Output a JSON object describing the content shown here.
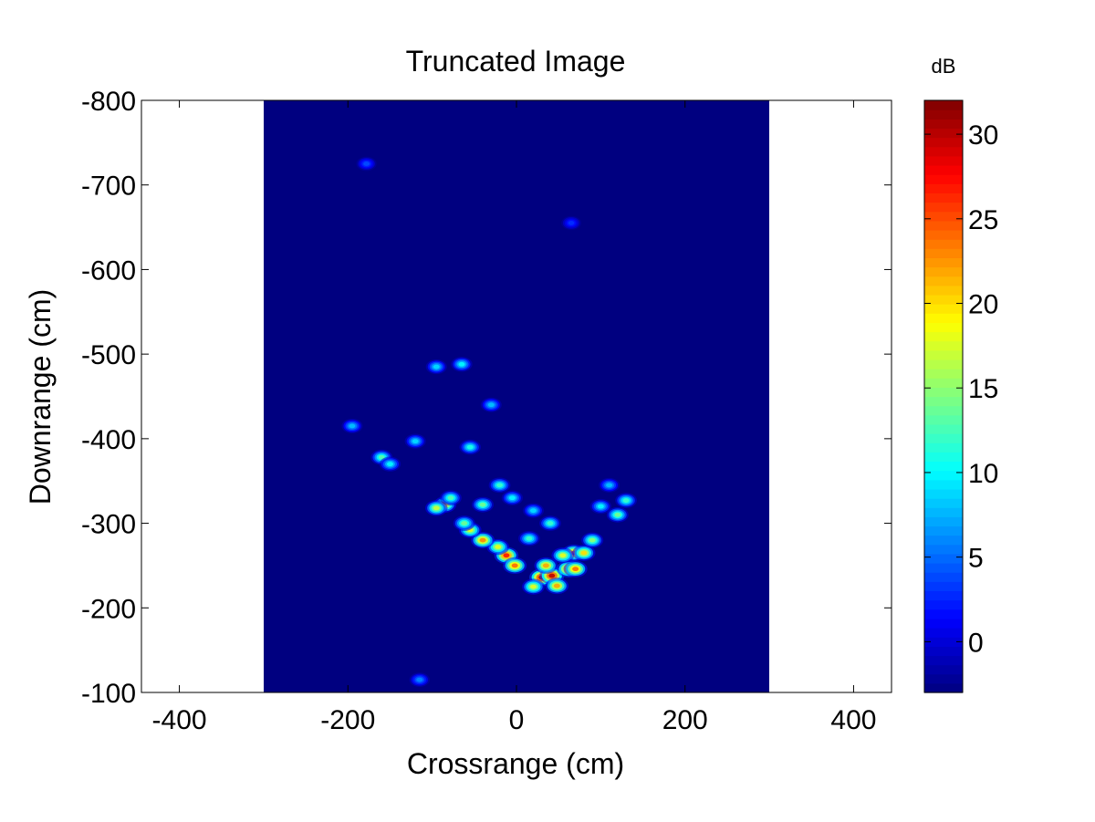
{
  "chart_data": {
    "type": "heatmap",
    "title": "Truncated Image",
    "xlabel": "Crossrange (cm)",
    "ylabel": "Downrange (cm)",
    "xlim": [
      -445,
      445
    ],
    "ylim": [
      -800,
      -100
    ],
    "y_reversed": true,
    "xticks": [
      -400,
      -200,
      0,
      200,
      400
    ],
    "yticks": [
      -800,
      -700,
      -600,
      -500,
      -400,
      -300,
      -200,
      -100
    ],
    "image_extent": {
      "x": [
        -300,
        300
      ],
      "y": [
        -800,
        -100
      ]
    },
    "background_value": -3,
    "colorbar": {
      "label": "dB",
      "colormap": "jet",
      "range": [
        -3,
        32
      ],
      "ticks": [
        0,
        5,
        10,
        15,
        20,
        25,
        30
      ]
    },
    "grid": false,
    "hotspots": [
      {
        "x": 30,
        "y": -236,
        "value": 31
      },
      {
        "x": 42,
        "y": -238,
        "value": 30
      },
      {
        "x": 48,
        "y": -226,
        "value": 22
      },
      {
        "x": 35,
        "y": -250,
        "value": 22
      },
      {
        "x": 20,
        "y": -225,
        "value": 18
      },
      {
        "x": 62,
        "y": -246,
        "value": 27
      },
      {
        "x": 70,
        "y": -246,
        "value": 24
      },
      {
        "x": 68,
        "y": -265,
        "value": 24
      },
      {
        "x": 80,
        "y": -265,
        "value": 20
      },
      {
        "x": 55,
        "y": -262,
        "value": 18
      },
      {
        "x": 90,
        "y": -280,
        "value": 15
      },
      {
        "x": -12,
        "y": -262,
        "value": 27
      },
      {
        "x": -2,
        "y": -250,
        "value": 24
      },
      {
        "x": -22,
        "y": -272,
        "value": 18
      },
      {
        "x": -40,
        "y": -280,
        "value": 23
      },
      {
        "x": -55,
        "y": -292,
        "value": 18
      },
      {
        "x": -62,
        "y": -300,
        "value": 14
      },
      {
        "x": -85,
        "y": -322,
        "value": 20
      },
      {
        "x": -95,
        "y": -318,
        "value": 17
      },
      {
        "x": -78,
        "y": -330,
        "value": 13
      },
      {
        "x": -40,
        "y": -322,
        "value": 14
      },
      {
        "x": -20,
        "y": -345,
        "value": 12
      },
      {
        "x": -5,
        "y": -330,
        "value": 10
      },
      {
        "x": 15,
        "y": -282,
        "value": 12
      },
      {
        "x": 20,
        "y": -315,
        "value": 9
      },
      {
        "x": 40,
        "y": -300,
        "value": 12
      },
      {
        "x": 120,
        "y": -310,
        "value": 14
      },
      {
        "x": 130,
        "y": -327,
        "value": 12
      },
      {
        "x": 100,
        "y": -320,
        "value": 10
      },
      {
        "x": 110,
        "y": -345,
        "value": 8
      },
      {
        "x": -160,
        "y": -378,
        "value": 13
      },
      {
        "x": -150,
        "y": -370,
        "value": 10
      },
      {
        "x": -55,
        "y": -390,
        "value": 11
      },
      {
        "x": -120,
        "y": -397,
        "value": 9
      },
      {
        "x": -195,
        "y": -415,
        "value": 8
      },
      {
        "x": -30,
        "y": -440,
        "value": 8
      },
      {
        "x": -65,
        "y": -488,
        "value": 10
      },
      {
        "x": -95,
        "y": -485,
        "value": 9
      },
      {
        "x": -178,
        "y": -725,
        "value": 4
      },
      {
        "x": 65,
        "y": -655,
        "value": 3
      },
      {
        "x": -115,
        "y": -115,
        "value": 6
      }
    ]
  }
}
